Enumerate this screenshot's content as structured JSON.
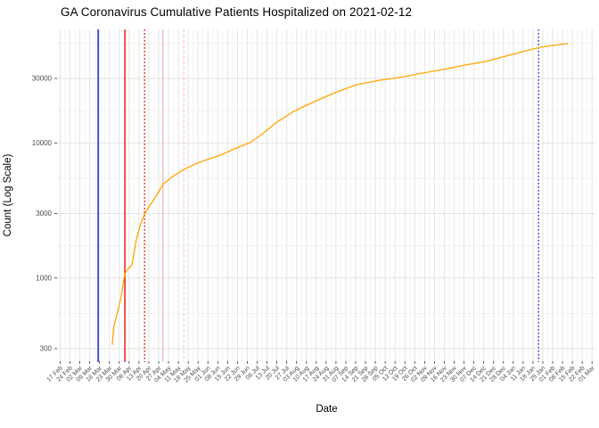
{
  "title": "GA Coronavirus Cumulative Patients Hospitalized on 2021-02-12",
  "x_axis": {
    "title": "Date",
    "tick_labels": [
      "17 Feb",
      "24 Feb",
      "02 Mar",
      "09 Mar",
      "16 Mar",
      "23 Mar",
      "30 Mar",
      "06 Apr",
      "13 Apr",
      "20 Apr",
      "27 Apr",
      "04 May",
      "11 May",
      "18 May",
      "25 May",
      "01 Jun",
      "08 Jun",
      "15 Jun",
      "22 Jun",
      "29 Jun",
      "06 Jul",
      "13 Jul",
      "20 Jul",
      "27 Jul",
      "03 Aug",
      "10 Aug",
      "17 Aug",
      "24 Aug",
      "31 Aug",
      "07 Sep",
      "14 Sep",
      "21 Sep",
      "28 Sep",
      "05 Oct",
      "12 Oct",
      "19 Oct",
      "26 Oct",
      "02 Nov",
      "09 Nov",
      "16 Nov",
      "23 Nov",
      "30 Nov",
      "07 Dec",
      "14 Dec",
      "21 Dec",
      "28 Dec",
      "04 Jan",
      "11 Jan",
      "18 Jan",
      "25 Jan",
      "01 Feb",
      "08 Feb",
      "15 Feb",
      "22 Feb",
      "01 Mar"
    ]
  },
  "y_axis": {
    "title": "Count (Log Scale)",
    "tick_labels": [
      "30000",
      "10000",
      "3000",
      "1000",
      "300"
    ],
    "tick_values": [
      30000,
      10000,
      3000,
      1000,
      300
    ]
  },
  "chart_data": {
    "type": "line",
    "title": "GA Coronavirus Cumulative Patients Hospitalized on 2021-02-12",
    "xlabel": "Date",
    "ylabel": "Count (Log Scale)",
    "scale": "log10",
    "x_start_date": "2020-02-17",
    "x_tick_interval_days": 7,
    "ylim": [
      243,
      69000
    ],
    "grid": "major-and-minor",
    "legend_position": "none",
    "y_major_breaks": [
      300,
      1000,
      3000,
      10000,
      30000
    ],
    "y_minor_breaks": [
      547.7,
      1732.1,
      5477.2,
      17320.5,
      54772.3
    ],
    "series": [
      {
        "name": "Cumulative Patients Hospitalized",
        "color": "#FFA500",
        "points_day_value": [
          [
            37,
            320
          ],
          [
            38,
            430
          ],
          [
            40,
            520
          ],
          [
            43,
            700
          ],
          [
            46,
            1075
          ],
          [
            48,
            1160
          ],
          [
            51,
            1250
          ],
          [
            54,
            1890
          ],
          [
            57,
            2480
          ],
          [
            60,
            2980
          ],
          [
            64,
            3470
          ],
          [
            69,
            4160
          ],
          [
            73,
            4920
          ],
          [
            80,
            5640
          ],
          [
            88,
            6370
          ],
          [
            96,
            6980
          ],
          [
            104,
            7500
          ],
          [
            114,
            8130
          ],
          [
            124,
            9040
          ],
          [
            135,
            10050
          ],
          [
            144,
            11700
          ],
          [
            154,
            14260
          ],
          [
            166,
            17100
          ],
          [
            175,
            19000
          ],
          [
            185,
            21140
          ],
          [
            197,
            23900
          ],
          [
            211,
            27000
          ],
          [
            227,
            29100
          ],
          [
            241,
            30500
          ],
          [
            258,
            32900
          ],
          [
            272,
            34900
          ],
          [
            288,
            37700
          ],
          [
            302,
            40000
          ],
          [
            319,
            44500
          ],
          [
            333,
            48700
          ],
          [
            341,
            51000
          ],
          [
            350,
            52600
          ],
          [
            361,
            54500
          ]
        ]
      }
    ],
    "reference_lines": [
      {
        "approx_date": "2020-03-15",
        "day": 27,
        "style": "solid",
        "color": "#0000CC"
      },
      {
        "approx_date": "2020-04-03",
        "day": 46,
        "style": "solid",
        "color": "#EE0000"
      },
      {
        "approx_date": "2020-04-17",
        "day": 60,
        "style": "dotted",
        "color": "#EE0000"
      },
      {
        "approx_date": "2020-04-30",
        "day": 73,
        "style": "solid",
        "color": "#FFB6C1"
      },
      {
        "approx_date": "2020-05-15",
        "day": 88,
        "style": "dashed",
        "color": "#FFCDD6"
      },
      {
        "approx_date": "2021-01-22",
        "day": 340,
        "style": "dotted",
        "color": "#2222DD"
      }
    ],
    "colors": {
      "line": "#FFA500",
      "grid_major": "#E3E3E3",
      "grid_minor": "#EFEFEF",
      "tick_text": "#4D4D4D",
      "axis_text": "#000000",
      "background": "#FFFFFF"
    }
  }
}
